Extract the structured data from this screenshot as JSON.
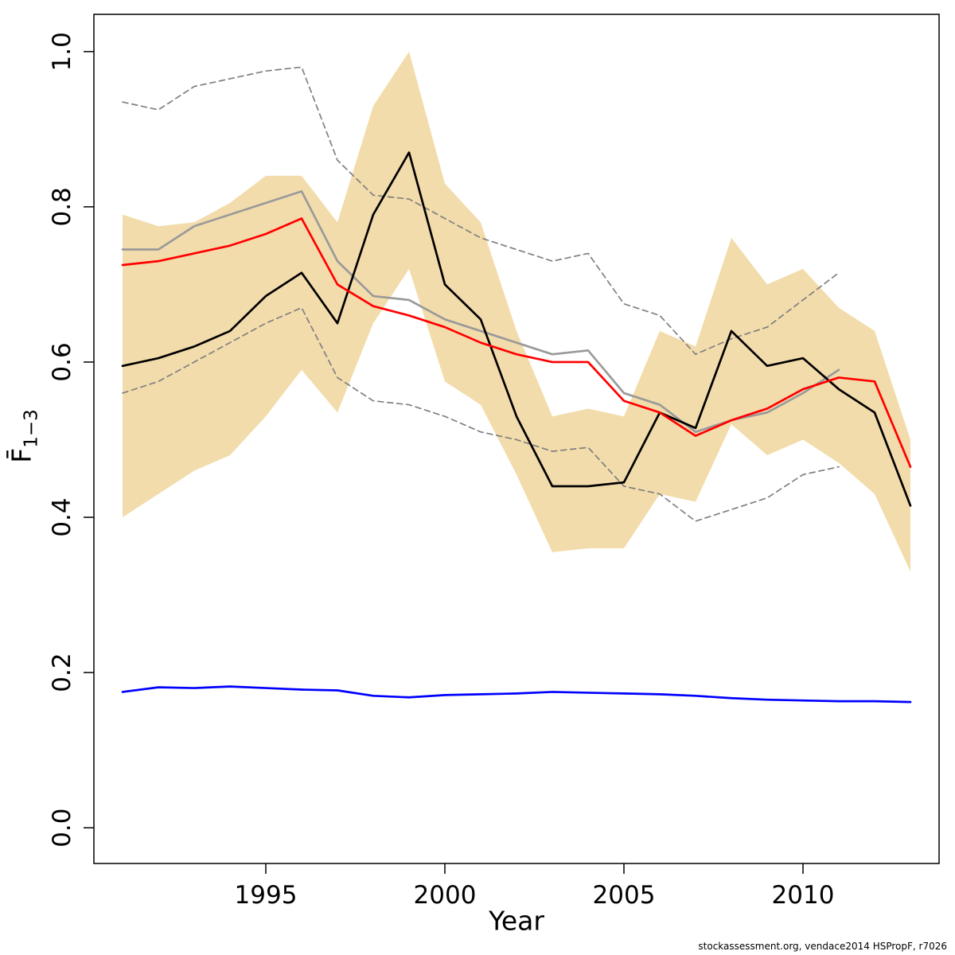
{
  "labels": {
    "xlabel": "Year",
    "ylabel_main": "F̄",
    "ylabel_sub": "1−3",
    "footer": "stockassessment.org, vendace2014 HSPropF, r7026"
  },
  "chart_data": {
    "type": "line",
    "title": "",
    "xlabel": "Year",
    "ylabel": "Mean fishing mortality F ages 1-3",
    "xlim": [
      1990.2,
      2013.8
    ],
    "ylim": [
      -0.046,
      1.048
    ],
    "x_ticks": [
      1995,
      2000,
      2005,
      2010
    ],
    "x_tick_labels": [
      "1995",
      "2000",
      "2005",
      "2010"
    ],
    "y_ticks": [
      0,
      0.2,
      0.4,
      0.6,
      0.8,
      1
    ],
    "y_tick_labels": [
      "0.0",
      "0.2",
      "0.4",
      "0.6",
      "0.8",
      "1.0"
    ],
    "grid": false,
    "legend": "none",
    "years": [
      1991,
      1992,
      1993,
      1994,
      1995,
      1996,
      1997,
      1998,
      1999,
      2000,
      2001,
      2002,
      2003,
      2004,
      2005,
      2006,
      2007,
      2008,
      2009,
      2010,
      2011,
      2012,
      2013
    ],
    "band": {
      "name": "confidence-band",
      "color": "#f3dcab",
      "upper": [
        0.79,
        0.775,
        0.78,
        0.805,
        0.84,
        0.84,
        0.78,
        0.93,
        1.0,
        0.83,
        0.78,
        0.64,
        0.53,
        0.54,
        0.53,
        0.64,
        0.62,
        0.76,
        0.7,
        0.72,
        0.67,
        0.64,
        0.5
      ],
      "lower": [
        0.4,
        0.43,
        0.46,
        0.48,
        0.53,
        0.59,
        0.535,
        0.65,
        0.72,
        0.575,
        0.545,
        0.455,
        0.355,
        0.36,
        0.36,
        0.43,
        0.42,
        0.52,
        0.48,
        0.5,
        0.47,
        0.43,
        0.33
      ]
    },
    "series": [
      {
        "name": "ci-upper-dashed",
        "color": "#808080",
        "style": "dashed",
        "values": [
          0.935,
          0.925,
          0.955,
          0.965,
          0.975,
          0.98,
          0.86,
          0.815,
          0.81,
          0.785,
          0.76,
          0.745,
          0.73,
          0.74,
          0.675,
          0.66,
          0.61,
          0.63,
          0.645,
          0.68,
          0.715,
          null,
          null
        ]
      },
      {
        "name": "ci-lower-dashed",
        "color": "#808080",
        "style": "dashed",
        "values": [
          0.56,
          0.575,
          0.6,
          0.625,
          0.65,
          0.67,
          0.58,
          0.55,
          0.545,
          0.53,
          0.51,
          0.5,
          0.485,
          0.49,
          0.44,
          0.43,
          0.395,
          0.41,
          0.425,
          0.455,
          0.465,
          null,
          null
        ]
      },
      {
        "name": "previous-fit-gray",
        "color": "#9a9a9a",
        "style": "solid",
        "values": [
          0.745,
          0.745,
          0.775,
          0.79,
          0.805,
          0.82,
          0.73,
          0.685,
          0.68,
          0.655,
          0.64,
          0.625,
          0.61,
          0.615,
          0.56,
          0.545,
          0.51,
          0.525,
          0.535,
          0.56,
          0.59,
          null,
          null
        ]
      },
      {
        "name": "estimate-black",
        "color": "#000000",
        "style": "solid",
        "values": [
          0.595,
          0.605,
          0.62,
          0.64,
          0.685,
          0.715,
          0.65,
          0.79,
          0.87,
          0.7,
          0.655,
          0.53,
          0.44,
          0.44,
          0.445,
          0.535,
          0.515,
          0.64,
          0.595,
          0.605,
          0.565,
          0.535,
          0.415
        ]
      },
      {
        "name": "current-fit-red",
        "color": "#ff0000",
        "style": "solid",
        "values": [
          0.725,
          0.73,
          0.74,
          0.75,
          0.765,
          0.785,
          0.7,
          0.672,
          0.66,
          0.645,
          0.625,
          0.61,
          0.6,
          0.6,
          0.55,
          0.535,
          0.505,
          0.525,
          0.54,
          0.565,
          0.58,
          0.575,
          0.465
        ]
      },
      {
        "name": "reference-blue",
        "color": "#0000ff",
        "style": "solid",
        "values": [
          0.175,
          0.181,
          0.18,
          0.182,
          0.18,
          0.178,
          0.177,
          0.17,
          0.168,
          0.171,
          0.172,
          0.173,
          0.175,
          0.174,
          0.173,
          0.172,
          0.17,
          0.167,
          0.165,
          0.164,
          0.163,
          0.163,
          0.162
        ]
      }
    ]
  }
}
